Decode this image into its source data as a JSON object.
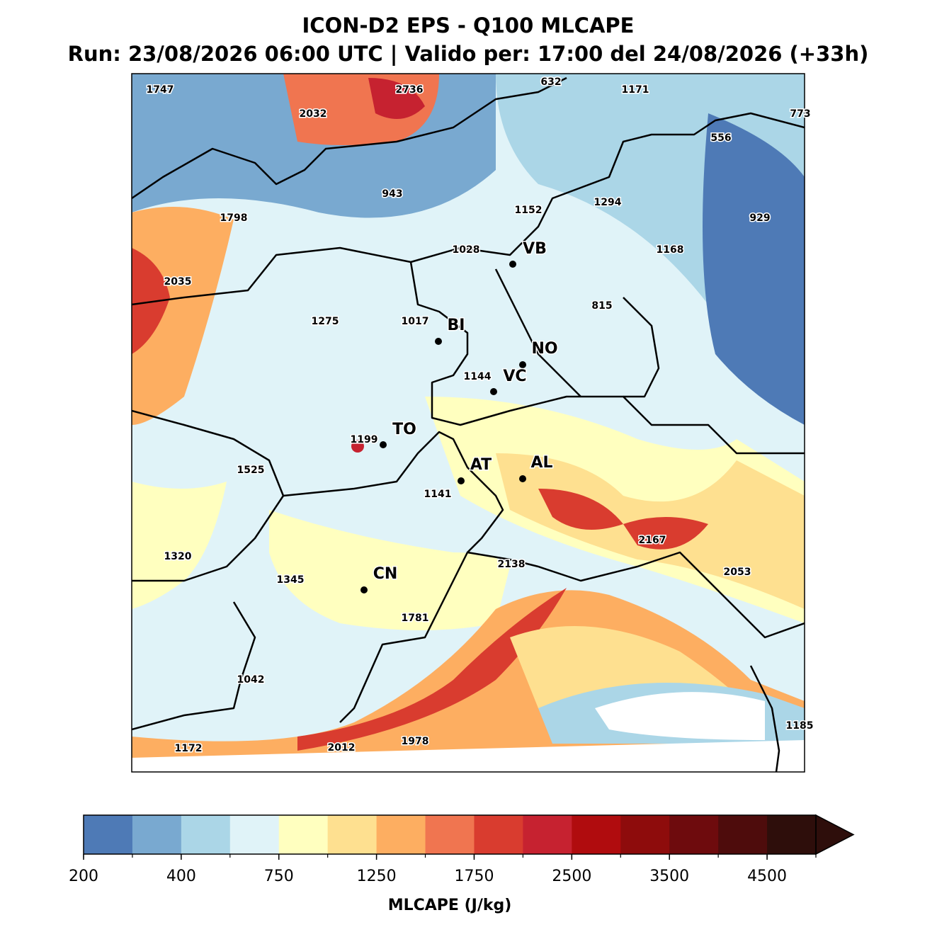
{
  "header": {
    "title": "ICON-D2 EPS - Q100 MLCAPE",
    "subtitle": "Run: 23/08/2026 06:00 UTC | Valido per: 17:00 del 24/08/2026 (+33h)"
  },
  "map": {
    "cities": [
      "VB",
      "BI",
      "NO",
      "VC",
      "TO",
      "AT",
      "AL",
      "CN"
    ],
    "value_labels": [
      1747,
      2736,
      632,
      1171,
      773,
      2032,
      556,
      943,
      1152,
      1294,
      929,
      1798,
      1028,
      1168,
      2035,
      815,
      1275,
      1017,
      1144,
      1199,
      1525,
      1141,
      2167,
      1320,
      2138,
      2053,
      1345,
      1781,
      1042,
      1185,
      1978,
      2012,
      1172
    ]
  },
  "colorbar": {
    "label": "MLCAPE (J/kg)",
    "ticks": [
      200,
      400,
      750,
      1250,
      1750,
      2500,
      3500,
      4500
    ],
    "colors": [
      "#4e7ab6",
      "#79a9d0",
      "#abd6e7",
      "#e0f3f8",
      "#ffffbf",
      "#fee090",
      "#fdae61",
      "#f07550",
      "#d93c2f",
      "#c62230",
      "#b00c0e",
      "#8e0c0c",
      "#6e0b0d",
      "#4e0c0c",
      "#2e0e0b"
    ]
  }
}
